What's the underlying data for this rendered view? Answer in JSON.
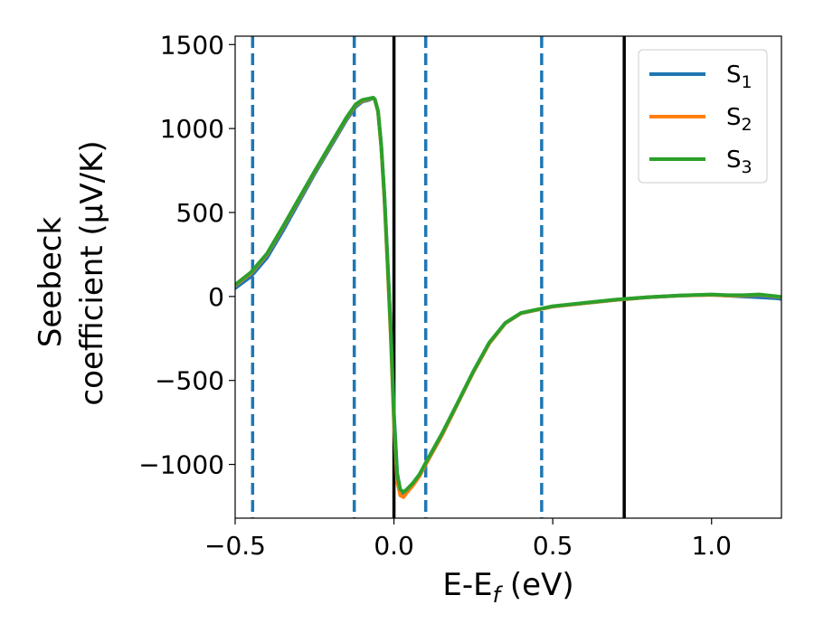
{
  "chart_data": {
    "type": "line",
    "xlabel": "E-E",
    "xlabel_sub": "f",
    "xlabel_unit": " (eV)",
    "ylabel_line1": "Seebeck",
    "ylabel_line2": "coefficient  (μV/K)",
    "xlim": [
      -0.5,
      1.22
    ],
    "ylim": [
      -1320,
      1550
    ],
    "xticks": [
      -0.5,
      0.0,
      0.5,
      1.0
    ],
    "xtick_labels": [
      "−0.5",
      "0.0",
      "0.5",
      "1.0"
    ],
    "yticks": [
      -1000,
      -500,
      0,
      500,
      1000,
      1500
    ],
    "ytick_labels": [
      "−1000",
      "−500",
      "0",
      "500",
      "1000",
      "1500"
    ],
    "grid": false,
    "legend_position": "top-right",
    "vlines_dashed": [
      -0.445,
      -0.125,
      0.1,
      0.465
    ],
    "vlines_solid": [
      0.0,
      0.725
    ],
    "series": [
      {
        "name": "S",
        "sub": "1",
        "color": "#1f77b4",
        "x": [
          -0.5,
          -0.45,
          -0.4,
          -0.35,
          -0.3,
          -0.25,
          -0.2,
          -0.15,
          -0.12,
          -0.1,
          -0.08,
          -0.07,
          -0.065,
          -0.06,
          -0.05,
          -0.04,
          -0.03,
          -0.02,
          -0.01,
          0.0,
          0.01,
          0.02,
          0.03,
          0.04,
          0.06,
          0.08,
          0.1,
          0.15,
          0.2,
          0.25,
          0.3,
          0.35,
          0.4,
          0.45,
          0.5,
          0.6,
          0.7,
          0.8,
          0.9,
          1.0,
          1.05,
          1.1,
          1.15,
          1.2,
          1.22
        ],
        "y": [
          50,
          120,
          230,
          390,
          560,
          730,
          890,
          1050,
          1130,
          1160,
          1170,
          1178,
          1180,
          1170,
          1100,
          900,
          600,
          200,
          -200,
          -700,
          -1050,
          -1160,
          -1180,
          -1160,
          -1120,
          -1070,
          -1000,
          -830,
          -640,
          -450,
          -280,
          -160,
          -100,
          -80,
          -60,
          -40,
          -20,
          -5,
          5,
          10,
          5,
          0,
          -5,
          -10,
          -15
        ]
      },
      {
        "name": "S",
        "sub": "2",
        "color": "#ff7f0e",
        "x": [
          -0.5,
          -0.45,
          -0.4,
          -0.35,
          -0.3,
          -0.25,
          -0.2,
          -0.15,
          -0.12,
          -0.1,
          -0.08,
          -0.07,
          -0.065,
          -0.06,
          -0.05,
          -0.04,
          -0.03,
          -0.02,
          -0.01,
          0.0,
          0.01,
          0.02,
          0.03,
          0.04,
          0.06,
          0.08,
          0.1,
          0.15,
          0.2,
          0.25,
          0.3,
          0.35,
          0.4,
          0.45,
          0.5,
          0.6,
          0.7,
          0.8,
          0.9,
          1.0,
          1.05,
          1.1,
          1.15,
          1.2,
          1.22
        ],
        "y": [
          65,
          140,
          250,
          410,
          575,
          740,
          900,
          1060,
          1140,
          1165,
          1175,
          1180,
          1182,
          1172,
          1100,
          890,
          580,
          170,
          -250,
          -760,
          -1100,
          -1185,
          -1195,
          -1170,
          -1125,
          -1070,
          -1000,
          -830,
          -640,
          -450,
          -280,
          -160,
          -100,
          -80,
          -60,
          -40,
          -20,
          -5,
          5,
          10,
          5,
          5,
          10,
          0,
          -5
        ]
      },
      {
        "name": "S",
        "sub": "3",
        "color": "#2ca02c",
        "x": [
          -0.5,
          -0.45,
          -0.4,
          -0.35,
          -0.3,
          -0.25,
          -0.2,
          -0.15,
          -0.12,
          -0.1,
          -0.08,
          -0.07,
          -0.065,
          -0.06,
          -0.05,
          -0.04,
          -0.03,
          -0.02,
          -0.01,
          0.0,
          0.01,
          0.02,
          0.03,
          0.04,
          0.06,
          0.08,
          0.1,
          0.15,
          0.2,
          0.25,
          0.3,
          0.35,
          0.4,
          0.45,
          0.5,
          0.6,
          0.7,
          0.8,
          0.9,
          1.0,
          1.05,
          1.1,
          1.15,
          1.2,
          1.22
        ],
        "y": [
          70,
          145,
          255,
          415,
          580,
          745,
          905,
          1065,
          1145,
          1170,
          1178,
          1182,
          1184,
          1174,
          1105,
          900,
          600,
          200,
          -220,
          -720,
          -1060,
          -1150,
          -1165,
          -1150,
          -1110,
          -1060,
          -990,
          -820,
          -635,
          -445,
          -275,
          -158,
          -98,
          -78,
          -58,
          -38,
          -18,
          -4,
          6,
          12,
          8,
          8,
          12,
          2,
          -3
        ]
      }
    ]
  }
}
